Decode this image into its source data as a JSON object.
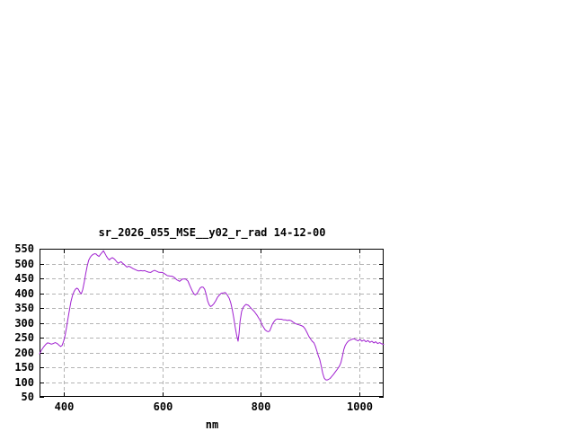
{
  "chart_data": {
    "type": "line",
    "title": "sr_2026_055_MSE__y02_r_rad 14-12-00",
    "xlabel": "nm",
    "ylabel": "",
    "xlim": [
      350,
      1050
    ],
    "ylim": [
      50,
      550
    ],
    "xticks": [
      400,
      600,
      800,
      1000
    ],
    "yticks": [
      50,
      100,
      150,
      200,
      250,
      300,
      350,
      400,
      450,
      500,
      550
    ],
    "grid": true,
    "legend": "none",
    "colors": {
      "line": "#a020d0",
      "grid": "#b3b3b3",
      "axis": "#000000",
      "text": "#000000",
      "background": "#ffffff"
    },
    "series": [
      {
        "name": "sr_2026_055_MSE__y02_r_rad",
        "points": [
          [
            350,
            195
          ],
          [
            354,
            208
          ],
          [
            358,
            218
          ],
          [
            362,
            226
          ],
          [
            366,
            232
          ],
          [
            370,
            231
          ],
          [
            374,
            228
          ],
          [
            378,
            230
          ],
          [
            382,
            233
          ],
          [
            386,
            230
          ],
          [
            390,
            224
          ],
          [
            393,
            220
          ],
          [
            396,
            224
          ],
          [
            399,
            238
          ],
          [
            402,
            258
          ],
          [
            405,
            285
          ],
          [
            408,
            315
          ],
          [
            411,
            345
          ],
          [
            414,
            372
          ],
          [
            417,
            392
          ],
          [
            420,
            405
          ],
          [
            423,
            413
          ],
          [
            426,
            417
          ],
          [
            429,
            413
          ],
          [
            432,
            403
          ],
          [
            435,
            398
          ],
          [
            438,
            412
          ],
          [
            441,
            438
          ],
          [
            444,
            466
          ],
          [
            447,
            492
          ],
          [
            450,
            511
          ],
          [
            453,
            521
          ],
          [
            456,
            527
          ],
          [
            459,
            531
          ],
          [
            462,
            533
          ],
          [
            465,
            532
          ],
          [
            468,
            527
          ],
          [
            471,
            524
          ],
          [
            474,
            531
          ],
          [
            477,
            537
          ],
          [
            480,
            543
          ],
          [
            483,
            534
          ],
          [
            486,
            525
          ],
          [
            489,
            517
          ],
          [
            492,
            512
          ],
          [
            495,
            517
          ],
          [
            498,
            520
          ],
          [
            501,
            517
          ],
          [
            504,
            512
          ],
          [
            507,
            506
          ],
          [
            510,
            501
          ],
          [
            513,
            504
          ],
          [
            516,
            506
          ],
          [
            519,
            501
          ],
          [
            522,
            497
          ],
          [
            525,
            492
          ],
          [
            528,
            488
          ],
          [
            531,
            491
          ],
          [
            534,
            489
          ],
          [
            537,
            486
          ],
          [
            540,
            483
          ],
          [
            544,
            480
          ],
          [
            548,
            477
          ],
          [
            552,
            475
          ],
          [
            556,
            476
          ],
          [
            560,
            475
          ],
          [
            564,
            476
          ],
          [
            568,
            473
          ],
          [
            572,
            471
          ],
          [
            576,
            470
          ],
          [
            580,
            474
          ],
          [
            584,
            477
          ],
          [
            588,
            474
          ],
          [
            592,
            471
          ],
          [
            596,
            470
          ],
          [
            600,
            470
          ],
          [
            605,
            465
          ],
          [
            610,
            459
          ],
          [
            615,
            458
          ],
          [
            620,
            457
          ],
          [
            625,
            452
          ],
          [
            629,
            445
          ],
          [
            635,
            440
          ],
          [
            641,
            448
          ],
          [
            647,
            448
          ],
          [
            652,
            441
          ],
          [
            656,
            425
          ],
          [
            660,
            410
          ],
          [
            664,
            398
          ],
          [
            667,
            394
          ],
          [
            671,
            400
          ],
          [
            674,
            410
          ],
          [
            677,
            418
          ],
          [
            680,
            421
          ],
          [
            683,
            420
          ],
          [
            686,
            413
          ],
          [
            689,
            396
          ],
          [
            692,
            374
          ],
          [
            695,
            361
          ],
          [
            698,
            355
          ],
          [
            701,
            358
          ],
          [
            704,
            363
          ],
          [
            708,
            373
          ],
          [
            712,
            386
          ],
          [
            716,
            394
          ],
          [
            720,
            400
          ],
          [
            724,
            401
          ],
          [
            728,
            402
          ],
          [
            732,
            394
          ],
          [
            736,
            382
          ],
          [
            739,
            368
          ],
          [
            742,
            345
          ],
          [
            745,
            318
          ],
          [
            748,
            285
          ],
          [
            751,
            258
          ],
          [
            754,
            238
          ],
          [
            756,
            265
          ],
          [
            758,
            305
          ],
          [
            761,
            338
          ],
          [
            764,
            351
          ],
          [
            767,
            358
          ],
          [
            770,
            362
          ],
          [
            775,
            359
          ],
          [
            781,
            348
          ],
          [
            787,
            338
          ],
          [
            793,
            324
          ],
          [
            797,
            313
          ],
          [
            800,
            304
          ],
          [
            803,
            292
          ],
          [
            806,
            284
          ],
          [
            809,
            276
          ],
          [
            812,
            272
          ],
          [
            815,
            270
          ],
          [
            818,
            272
          ],
          [
            821,
            284
          ],
          [
            824,
            296
          ],
          [
            827,
            304
          ],
          [
            830,
            310
          ],
          [
            834,
            313
          ],
          [
            838,
            312
          ],
          [
            842,
            312
          ],
          [
            846,
            310
          ],
          [
            850,
            310
          ],
          [
            854,
            308
          ],
          [
            858,
            309
          ],
          [
            862,
            307
          ],
          [
            866,
            302
          ],
          [
            870,
            298
          ],
          [
            874,
            295
          ],
          [
            878,
            293
          ],
          [
            882,
            291
          ],
          [
            886,
            288
          ],
          [
            890,
            280
          ],
          [
            894,
            268
          ],
          [
            898,
            254
          ],
          [
            902,
            244
          ],
          [
            905,
            237
          ],
          [
            908,
            233
          ],
          [
            911,
            222
          ],
          [
            914,
            206
          ],
          [
            917,
            190
          ],
          [
            920,
            176
          ],
          [
            923,
            155
          ],
          [
            926,
            130
          ],
          [
            929,
            114
          ],
          [
            932,
            108
          ],
          [
            935,
            107
          ],
          [
            938,
            109
          ],
          [
            941,
            112
          ],
          [
            944,
            118
          ],
          [
            948,
            126
          ],
          [
            952,
            135
          ],
          [
            956,
            144
          ],
          [
            960,
            154
          ],
          [
            963,
            165
          ],
          [
            966,
            185
          ],
          [
            969,
            210
          ],
          [
            972,
            224
          ],
          [
            975,
            232
          ],
          [
            978,
            238
          ],
          [
            981,
            241
          ],
          [
            984,
            243
          ],
          [
            987,
            245
          ],
          [
            990,
            246
          ],
          [
            994,
            242
          ],
          [
            998,
            239
          ],
          [
            1002,
            244
          ],
          [
            1006,
            238
          ],
          [
            1010,
            242
          ],
          [
            1014,
            236
          ],
          [
            1018,
            240
          ],
          [
            1022,
            234
          ],
          [
            1026,
            238
          ],
          [
            1030,
            232
          ],
          [
            1034,
            236
          ],
          [
            1038,
            230
          ],
          [
            1042,
            233
          ],
          [
            1046,
            229
          ],
          [
            1050,
            227
          ]
        ]
      }
    ]
  }
}
